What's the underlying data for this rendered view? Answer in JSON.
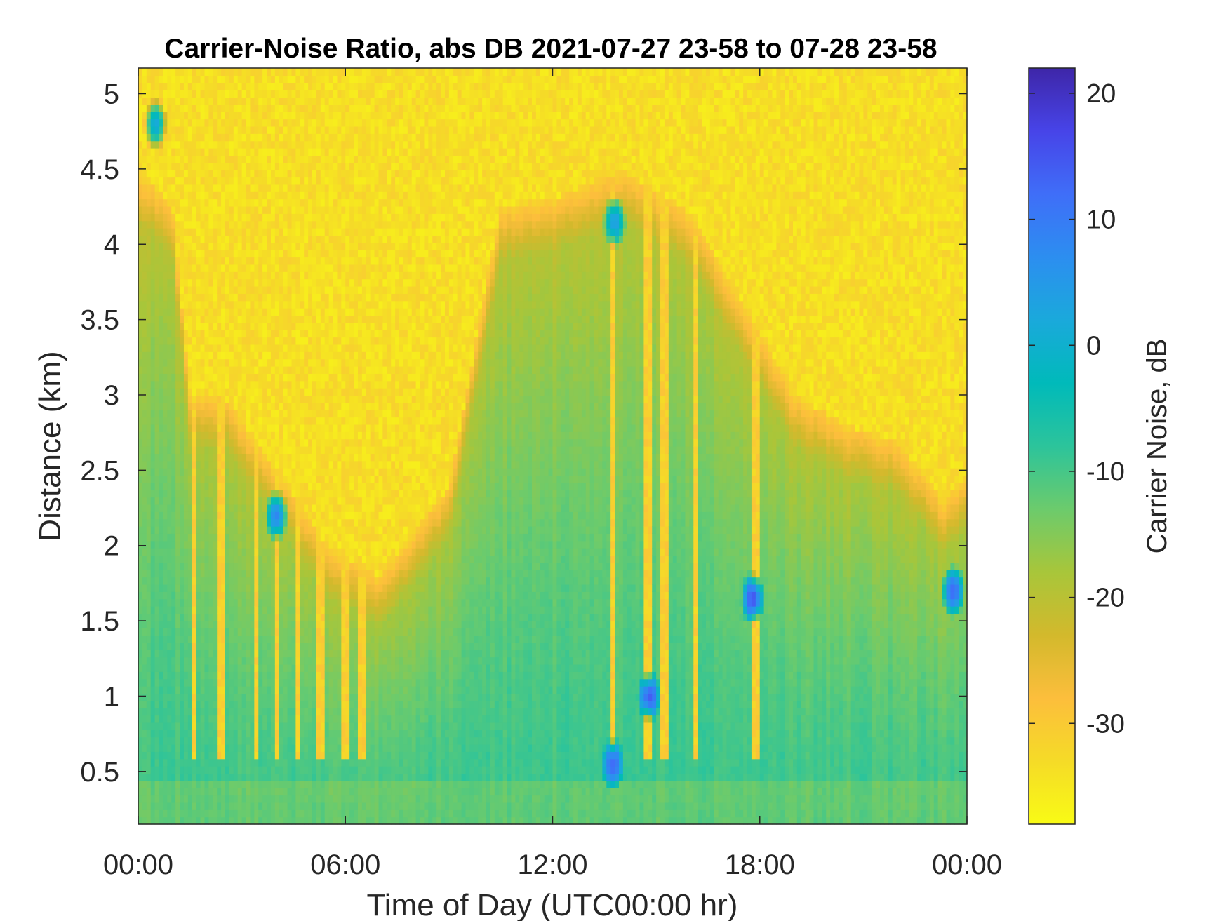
{
  "chart_data": {
    "type": "heatmap",
    "title": "Carrier-Noise Ratio, abs DB 2021-07-27 23-58 to 07-28 23-58",
    "xlabel": "Time of Day (UTC00:00 hr)",
    "ylabel": "Distance (km)",
    "colorbar_label": "Carrier Noise, dB",
    "xlim": [
      0,
      24
    ],
    "ylim": [
      0.15,
      5.17
    ],
    "clim": [
      -38,
      22
    ],
    "x_ticks": [
      0,
      6,
      12,
      18,
      24
    ],
    "x_tick_labels": [
      "00:00",
      "06:00",
      "12:00",
      "18:00",
      "00:00"
    ],
    "y_ticks": [
      0.5,
      1,
      1.5,
      2,
      2.5,
      3,
      3.5,
      4,
      4.5,
      5
    ],
    "y_tick_labels": [
      "0.5",
      "1",
      "1.5",
      "2",
      "2.5",
      "3",
      "3.5",
      "4",
      "4.5",
      "5"
    ],
    "colorbar_ticks": [
      20,
      10,
      0,
      -10,
      -20,
      -30
    ],
    "colorbar_tick_labels": [
      "20",
      "10",
      "0",
      "-10",
      "-20",
      "-30"
    ],
    "colormap": [
      "#3e26a8",
      "#4744e8",
      "#3f6ef8",
      "#2c8ef0",
      "#1aa9db",
      "#00baba",
      "#2cc49b",
      "#6ccb6c",
      "#a8c63a",
      "#d3b92c",
      "#fcbe3c",
      "#f5db27",
      "#f9fb15"
    ],
    "grid": false,
    "legend": "colorbar-right",
    "boundary_layer_top_km": [
      {
        "x": 0,
        "y": 4.5
      },
      {
        "x": 1,
        "y": 4.25
      },
      {
        "x": 1.5,
        "y": 3.0
      },
      {
        "x": 2.5,
        "y": 3.0
      },
      {
        "x": 4,
        "y": 2.5
      },
      {
        "x": 5.5,
        "y": 2.0
      },
      {
        "x": 7,
        "y": 1.8
      },
      {
        "x": 9,
        "y": 2.4
      },
      {
        "x": 10.5,
        "y": 4.25
      },
      {
        "x": 12,
        "y": 4.3
      },
      {
        "x": 14,
        "y": 4.5
      },
      {
        "x": 16,
        "y": 4.2
      },
      {
        "x": 17.5,
        "y": 3.6
      },
      {
        "x": 19,
        "y": 3.0
      },
      {
        "x": 20.5,
        "y": 2.8
      },
      {
        "x": 22,
        "y": 2.7
      },
      {
        "x": 23.3,
        "y": 2.3
      },
      {
        "x": 24,
        "y": 2.45
      }
    ],
    "notable_features": [
      {
        "x": 0.5,
        "y": 4.8,
        "value_db": 2
      },
      {
        "x": 13.8,
        "y": 4.15,
        "value_db": 4
      },
      {
        "x": 17.8,
        "y": 1.65,
        "value_db": 15
      },
      {
        "x": 14.8,
        "y": 1.0,
        "value_db": 14
      },
      {
        "x": 13.75,
        "y": 0.55,
        "value_db": 12
      },
      {
        "x": 23.6,
        "y": 1.7,
        "value_db": 12
      },
      {
        "x": 4.0,
        "y": 2.2,
        "value_db": 8
      }
    ],
    "vertical_streaks_hr": [
      1.6,
      2.4,
      3.4,
      4.0,
      4.6,
      5.3,
      6.0,
      6.5,
      13.75,
      14.75,
      15.25,
      16.15,
      17.9
    ]
  }
}
